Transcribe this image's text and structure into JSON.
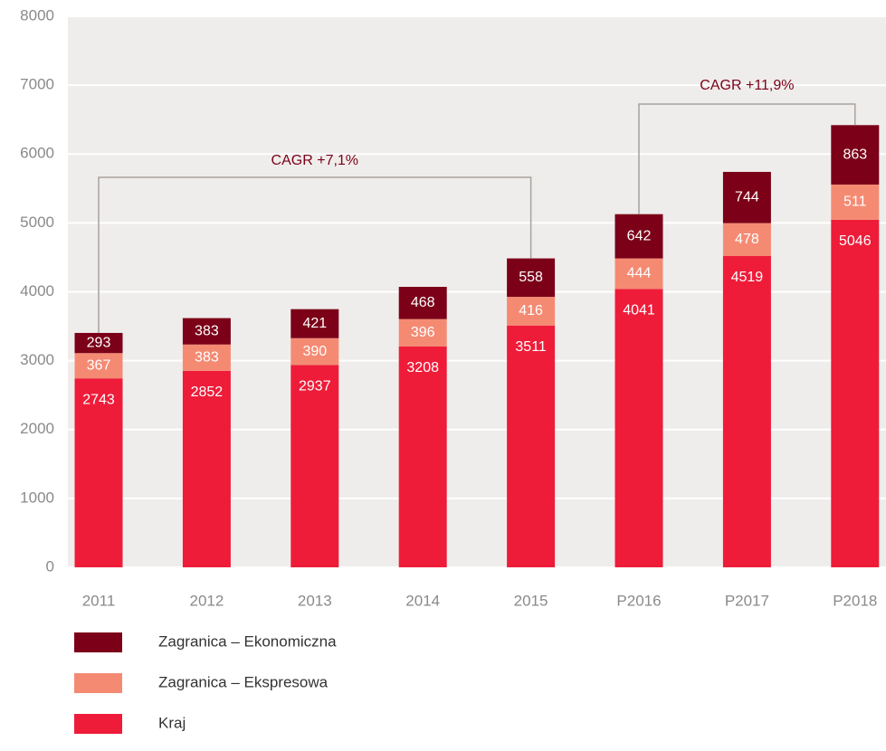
{
  "chart_data": {
    "type": "stacked_bar",
    "categories": [
      "2011",
      "2012",
      "2013",
      "2014",
      "2015",
      "P2016",
      "P2017",
      "P2018"
    ],
    "series": [
      {
        "name": "Kraj",
        "color": "#ee1c39",
        "values": [
          2743,
          2852,
          2937,
          3208,
          3511,
          4041,
          4519,
          5046
        ]
      },
      {
        "name": "Zagranica – Ekspresowa",
        "color": "#f58a73",
        "values": [
          367,
          383,
          390,
          396,
          416,
          444,
          478,
          511
        ]
      },
      {
        "name": "Zagranica – Ekonomiczna",
        "color": "#7b0018",
        "values": [
          293,
          383,
          421,
          468,
          558,
          642,
          744,
          863
        ]
      }
    ],
    "ylim": [
      0,
      8000
    ],
    "yticks": [
      0,
      1000,
      2000,
      3000,
      4000,
      5000,
      6000,
      7000,
      8000
    ],
    "grid": true,
    "annotations": [
      "CAGR +7,1%",
      "CAGR +11,9%"
    ]
  }
}
